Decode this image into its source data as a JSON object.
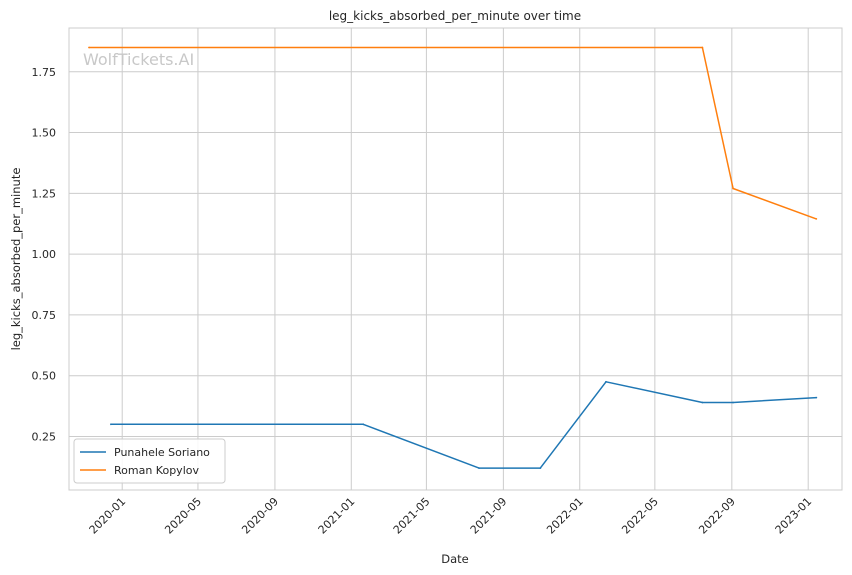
{
  "chart_data": {
    "type": "line",
    "title": "leg_kicks_absorbed_per_minute over time",
    "xlabel": "Date",
    "ylabel": "leg_kicks_absorbed_per_minute",
    "watermark": "WolfTickets.AI",
    "xlim": [
      "2019-10-08",
      "2023-02-24"
    ],
    "ylim": [
      0.03,
      1.93
    ],
    "x_ticks": [
      "2020-01",
      "2020-05",
      "2020-09",
      "2021-01",
      "2021-05",
      "2021-09",
      "2022-01",
      "2022-05",
      "2022-09",
      "2023-01"
    ],
    "y_ticks": [
      "0.25",
      "0.50",
      "0.75",
      "1.00",
      "1.25",
      "1.50",
      "1.75"
    ],
    "grid": true,
    "legend_position": "lower-left",
    "series": [
      {
        "name": "Punahele Soriano",
        "color": "#1f77b4",
        "points": [
          [
            "2019-12-14",
            0.3
          ],
          [
            "2021-01-20",
            0.3
          ],
          [
            "2021-07-24",
            0.12
          ],
          [
            "2021-10-30",
            0.12
          ],
          [
            "2022-02-12",
            0.475
          ],
          [
            "2022-07-16",
            0.39
          ],
          [
            "2022-09-03",
            0.39
          ],
          [
            "2023-01-14",
            0.41
          ]
        ]
      },
      {
        "name": "Roman Kopylov",
        "color": "#ff7f0e",
        "points": [
          [
            "2019-11-09",
            1.85
          ],
          [
            "2022-07-16",
            1.85
          ],
          [
            "2022-09-03",
            1.27
          ],
          [
            "2023-01-14",
            1.145
          ]
        ]
      }
    ]
  }
}
